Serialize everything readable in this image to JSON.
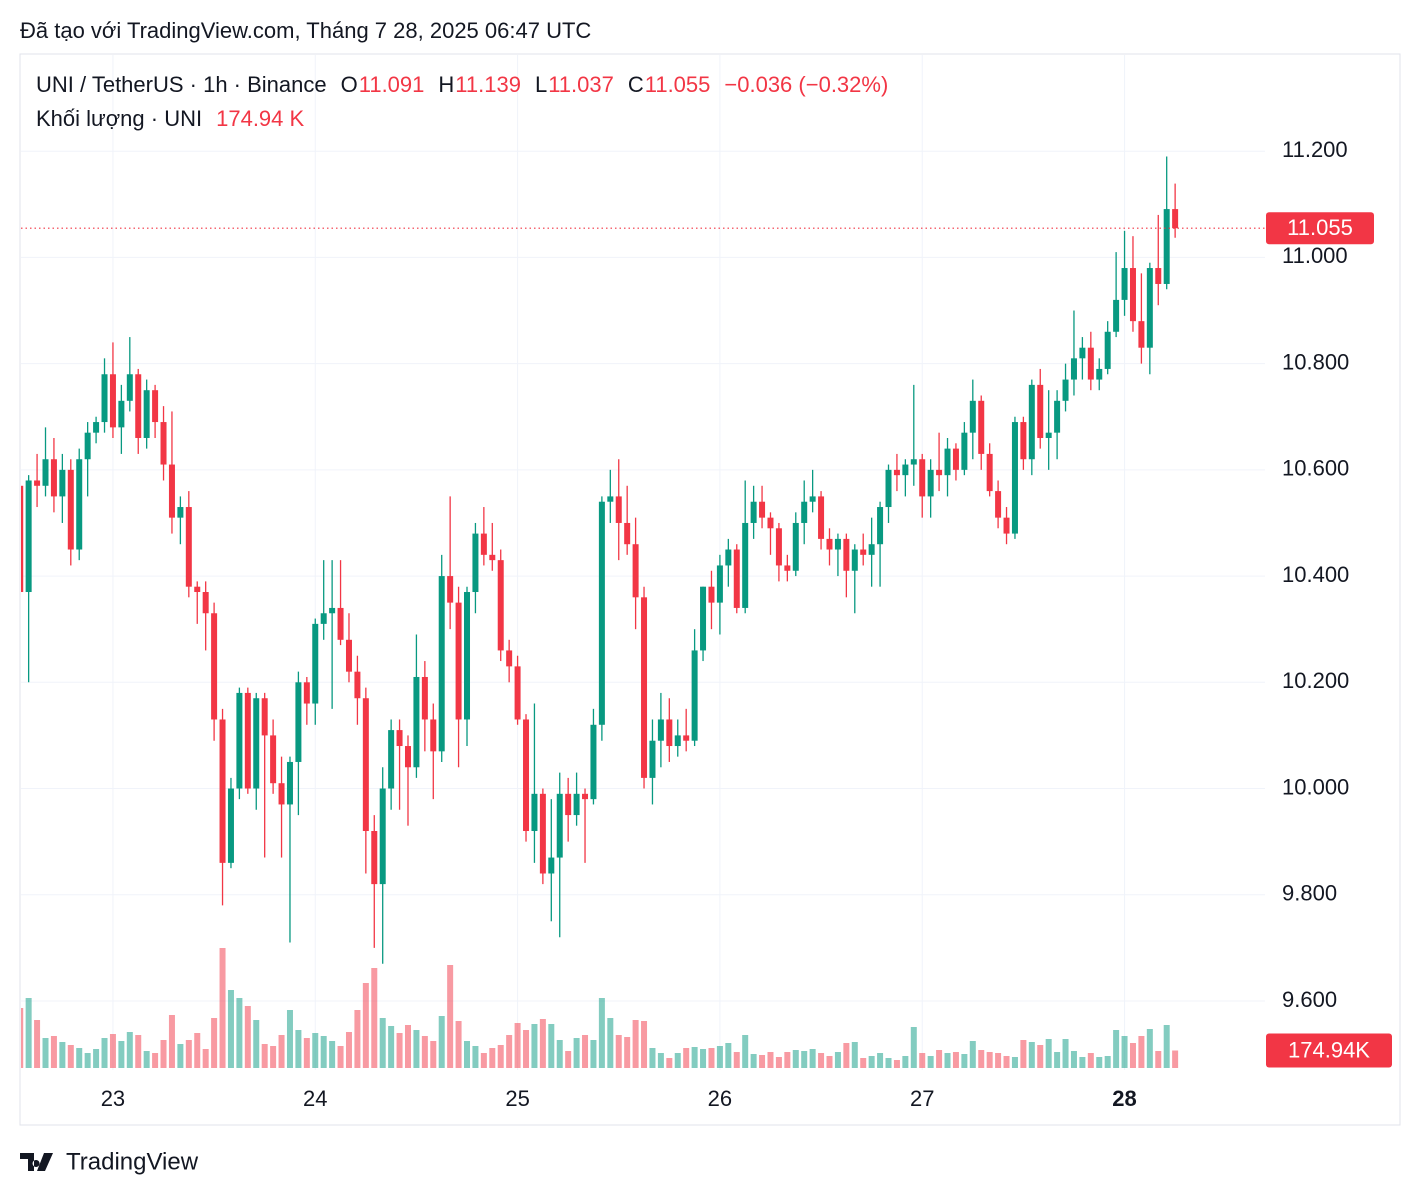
{
  "header": {
    "title": "Đã tạo với TradingView.com, Tháng 7 28, 2025 06:47 UTC"
  },
  "chart_data": {
    "type": "candlestick",
    "symbol": "UNI / TetherUS · 1h · Binance",
    "ohlc_letters": [
      "O",
      "H",
      "L",
      "C"
    ],
    "change": "−0.036 (−0.32%)",
    "volume_title": "Khối lượng · UNI",
    "volume_label": "174.94 K",
    "volume_tag": "174.94K",
    "categories": [
      null,
      null,
      null,
      null,
      null,
      null,
      null,
      null,
      null,
      null,
      null,
      "23",
      null,
      null,
      null,
      null,
      null,
      null,
      null,
      null,
      null,
      null,
      null,
      null,
      null,
      null,
      null,
      null,
      null,
      null,
      null,
      null,
      null,
      null,
      null,
      "24",
      null,
      null,
      null,
      null,
      null,
      null,
      null,
      null,
      null,
      null,
      null,
      null,
      null,
      null,
      null,
      null,
      null,
      null,
      null,
      null,
      null,
      null,
      null,
      "25",
      null,
      null,
      null,
      null,
      null,
      null,
      null,
      null,
      null,
      null,
      null,
      null,
      null,
      null,
      null,
      null,
      null,
      null,
      null,
      null,
      null,
      null,
      null,
      "26",
      null,
      null,
      null,
      null,
      null,
      null,
      null,
      null,
      null,
      null,
      null,
      null,
      null,
      null,
      null,
      null,
      null,
      null,
      null,
      null,
      null,
      null,
      null,
      "27",
      null,
      null,
      null,
      null,
      null,
      null,
      null,
      null,
      null,
      null,
      null,
      null,
      null,
      null,
      null,
      null,
      null,
      null,
      null,
      null,
      null,
      null,
      null,
      "28",
      null,
      null,
      null,
      null,
      null,
      null
    ],
    "open": [
      10.57,
      10.37,
      10.58,
      10.57,
      10.62,
      10.55,
      10.6,
      10.45,
      10.62,
      10.67,
      10.69,
      10.78,
      10.68,
      10.73,
      10.78,
      10.66,
      10.75,
      10.69,
      10.61,
      10.51,
      10.53,
      10.38,
      10.37,
      10.33,
      10.13,
      9.86,
      10.0,
      10.18,
      10.0,
      10.17,
      10.1,
      10.01,
      9.97,
      10.05,
      10.2,
      10.16,
      10.31,
      10.33,
      10.34,
      10.28,
      10.22,
      10.17,
      9.92,
      9.82,
      10.0,
      10.11,
      10.08,
      10.04,
      10.21,
      10.13,
      10.07,
      10.4,
      10.35,
      10.13,
      10.37,
      10.48,
      10.44,
      10.43,
      10.26,
      10.23,
      10.13,
      9.92,
      9.99,
      9.84,
      9.87,
      9.99,
      9.95,
      9.99,
      9.98,
      10.12,
      10.54,
      10.55,
      10.5,
      10.46,
      10.36,
      10.02,
      10.09,
      10.13,
      10.08,
      10.1,
      10.09,
      10.26,
      10.38,
      10.35,
      10.42,
      10.45,
      10.34,
      10.5,
      10.54,
      10.51,
      10.49,
      10.42,
      10.41,
      10.5,
      10.54,
      10.55,
      10.47,
      10.45,
      10.47,
      10.41,
      10.45,
      10.44,
      10.46,
      10.53,
      10.6,
      10.59,
      10.61,
      10.62,
      10.55,
      10.6,
      10.59,
      10.64,
      10.6,
      10.67,
      10.73,
      10.63,
      10.56,
      10.51,
      10.48,
      10.69,
      10.62,
      10.76,
      10.66,
      10.67,
      10.73,
      10.77,
      10.81,
      10.83,
      10.77,
      10.79,
      10.86,
      10.92,
      10.98,
      10.88,
      10.83,
      10.98,
      10.95,
      11.091
    ],
    "high": [
      10.58,
      10.59,
      10.63,
      10.68,
      10.66,
      10.63,
      10.62,
      10.64,
      10.69,
      10.7,
      10.81,
      10.84,
      10.76,
      10.85,
      10.79,
      10.77,
      10.76,
      10.72,
      10.71,
      10.55,
      10.56,
      10.39,
      10.39,
      10.35,
      10.15,
      10.02,
      10.19,
      10.19,
      10.18,
      10.18,
      10.13,
      10.06,
      10.06,
      10.22,
      10.21,
      10.32,
      10.43,
      10.43,
      10.43,
      10.33,
      10.25,
      10.19,
      9.95,
      10.04,
      10.13,
      10.13,
      10.1,
      10.29,
      10.24,
      10.16,
      10.44,
      10.55,
      10.38,
      10.38,
      10.5,
      10.53,
      10.5,
      10.45,
      10.28,
      10.25,
      10.14,
      10.16,
      10.0,
      9.98,
      10.03,
      10.02,
      10.03,
      10.0,
      10.15,
      10.55,
      10.6,
      10.62,
      10.57,
      10.51,
      10.38,
      10.13,
      10.18,
      10.17,
      10.13,
      10.15,
      10.3,
      10.38,
      10.41,
      10.44,
      10.47,
      10.46,
      10.58,
      10.57,
      10.57,
      10.52,
      10.5,
      10.44,
      10.52,
      10.58,
      10.6,
      10.56,
      10.49,
      10.48,
      10.48,
      10.46,
      10.48,
      10.51,
      10.54,
      10.61,
      10.63,
      10.62,
      10.76,
      10.63,
      10.62,
      10.67,
      10.66,
      10.65,
      10.69,
      10.77,
      10.74,
      10.65,
      10.58,
      10.53,
      10.7,
      10.7,
      10.77,
      10.79,
      10.75,
      10.75,
      10.8,
      10.9,
      10.85,
      10.86,
      10.81,
      10.88,
      11.01,
      11.05,
      11.04,
      10.97,
      10.99,
      11.08,
      11.19,
      11.139
    ],
    "low": [
      10.29,
      10.2,
      10.53,
      10.55,
      10.52,
      10.5,
      10.42,
      10.43,
      10.55,
      10.65,
      10.67,
      10.66,
      10.63,
      10.71,
      10.63,
      10.64,
      10.66,
      10.58,
      10.48,
      10.46,
      10.36,
      10.31,
      10.26,
      10.09,
      9.78,
      9.85,
      9.98,
      9.99,
      9.96,
      9.87,
      9.99,
      9.87,
      9.71,
      9.95,
      10.12,
      10.12,
      10.28,
      10.15,
      10.27,
      10.2,
      10.12,
      9.84,
      9.7,
      9.67,
      9.96,
      9.96,
      9.93,
      10.02,
      10.07,
      9.98,
      10.05,
      10.3,
      10.04,
      10.08,
      10.33,
      10.42,
      10.41,
      10.24,
      10.2,
      10.12,
      9.9,
      9.86,
      9.82,
      9.75,
      9.72,
      9.9,
      9.93,
      9.86,
      9.97,
      10.09,
      10.5,
      10.43,
      10.44,
      10.3,
      10.0,
      9.97,
      10.04,
      10.05,
      10.06,
      10.07,
      10.08,
      10.24,
      10.3,
      10.29,
      10.38,
      10.33,
      10.33,
      10.47,
      10.49,
      10.44,
      10.39,
      10.39,
      10.4,
      10.46,
      10.52,
      10.45,
      10.42,
      10.4,
      10.36,
      10.33,
      10.42,
      10.38,
      10.38,
      10.5,
      10.56,
      10.55,
      10.57,
      10.51,
      10.51,
      10.56,
      10.55,
      10.58,
      10.59,
      10.62,
      10.6,
      10.55,
      10.49,
      10.46,
      10.47,
      10.6,
      10.59,
      10.64,
      10.6,
      10.62,
      10.71,
      10.74,
      10.77,
      10.75,
      10.75,
      10.78,
      10.85,
      10.89,
      10.86,
      10.8,
      10.78,
      10.91,
      10.94,
      11.037
    ],
    "close": [
      10.37,
      10.58,
      10.57,
      10.62,
      10.55,
      10.6,
      10.45,
      10.62,
      10.67,
      10.69,
      10.78,
      10.68,
      10.73,
      10.78,
      10.66,
      10.75,
      10.69,
      10.61,
      10.51,
      10.53,
      10.38,
      10.37,
      10.33,
      10.13,
      9.86,
      10.0,
      10.18,
      10.0,
      10.17,
      10.1,
      10.01,
      9.97,
      10.05,
      10.2,
      10.16,
      10.31,
      10.33,
      10.34,
      10.28,
      10.22,
      10.17,
      9.92,
      9.82,
      10.0,
      10.11,
      10.08,
      10.04,
      10.21,
      10.13,
      10.07,
      10.4,
      10.35,
      10.13,
      10.37,
      10.48,
      10.44,
      10.43,
      10.26,
      10.23,
      10.13,
      9.92,
      9.99,
      9.84,
      9.87,
      9.99,
      9.95,
      9.99,
      9.98,
      10.12,
      10.54,
      10.55,
      10.5,
      10.46,
      10.36,
      10.02,
      10.09,
      10.13,
      10.08,
      10.1,
      10.09,
      10.26,
      10.38,
      10.35,
      10.42,
      10.45,
      10.34,
      10.5,
      10.54,
      10.51,
      10.49,
      10.42,
      10.41,
      10.5,
      10.54,
      10.55,
      10.47,
      10.45,
      10.47,
      10.41,
      10.45,
      10.44,
      10.46,
      10.53,
      10.6,
      10.59,
      10.61,
      10.62,
      10.55,
      10.6,
      10.59,
      10.64,
      10.6,
      10.67,
      10.73,
      10.63,
      10.56,
      10.51,
      10.48,
      10.69,
      10.62,
      10.76,
      10.66,
      10.67,
      10.73,
      10.77,
      10.81,
      10.83,
      10.77,
      10.79,
      10.86,
      10.92,
      10.98,
      10.88,
      10.83,
      10.98,
      10.95,
      11.091,
      11.055
    ],
    "volume": [
      600,
      700,
      480,
      300,
      320,
      260,
      230,
      200,
      150,
      190,
      300,
      340,
      270,
      360,
      330,
      170,
      150,
      280,
      530,
      240,
      280,
      350,
      190,
      500,
      1200,
      780,
      700,
      620,
      480,
      240,
      220,
      330,
      580,
      380,
      300,
      350,
      320,
      270,
      220,
      360,
      580,
      850,
      1000,
      500,
      420,
      350,
      430,
      380,
      320,
      270,
      520,
      1030,
      470,
      270,
      220,
      150,
      200,
      230,
      330,
      450,
      380,
      440,
      490,
      440,
      280,
      170,
      300,
      330,
      280,
      700,
      500,
      330,
      310,
      480,
      470,
      200,
      150,
      100,
      150,
      200,
      210,
      190,
      200,
      220,
      250,
      160,
      330,
      140,
      130,
      160,
      110,
      160,
      180,
      170,
      190,
      150,
      120,
      160,
      250,
      260,
      100,
      120,
      150,
      100,
      80,
      120,
      410,
      150,
      120,
      180,
      150,
      160,
      140,
      270,
      180,
      160,
      150,
      120,
      110,
      280,
      260,
      230,
      290,
      160,
      290,
      170,
      110,
      150,
      110,
      120,
      380,
      320,
      250,
      320,
      390,
      170,
      430,
      174.94
    ],
    "up_color": "#089981",
    "down_color": "#f23645",
    "ylim": [
      9.47,
      11.383
    ],
    "yticks": [
      {
        "value": 9.6,
        "label": "9.600"
      },
      {
        "value": 9.8,
        "label": "9.800"
      },
      {
        "value": 10.0,
        "label": "10.000"
      },
      {
        "value": 10.2,
        "label": "10.200"
      },
      {
        "value": 10.4,
        "label": "10.400"
      },
      {
        "value": 10.6,
        "label": "10.600"
      },
      {
        "value": 10.8,
        "label": "10.800"
      },
      {
        "value": 11.0,
        "label": "11.000"
      },
      {
        "value": 11.2,
        "label": "11.200"
      }
    ],
    "grid": true
  },
  "footer": {
    "brand": "TradingView"
  }
}
